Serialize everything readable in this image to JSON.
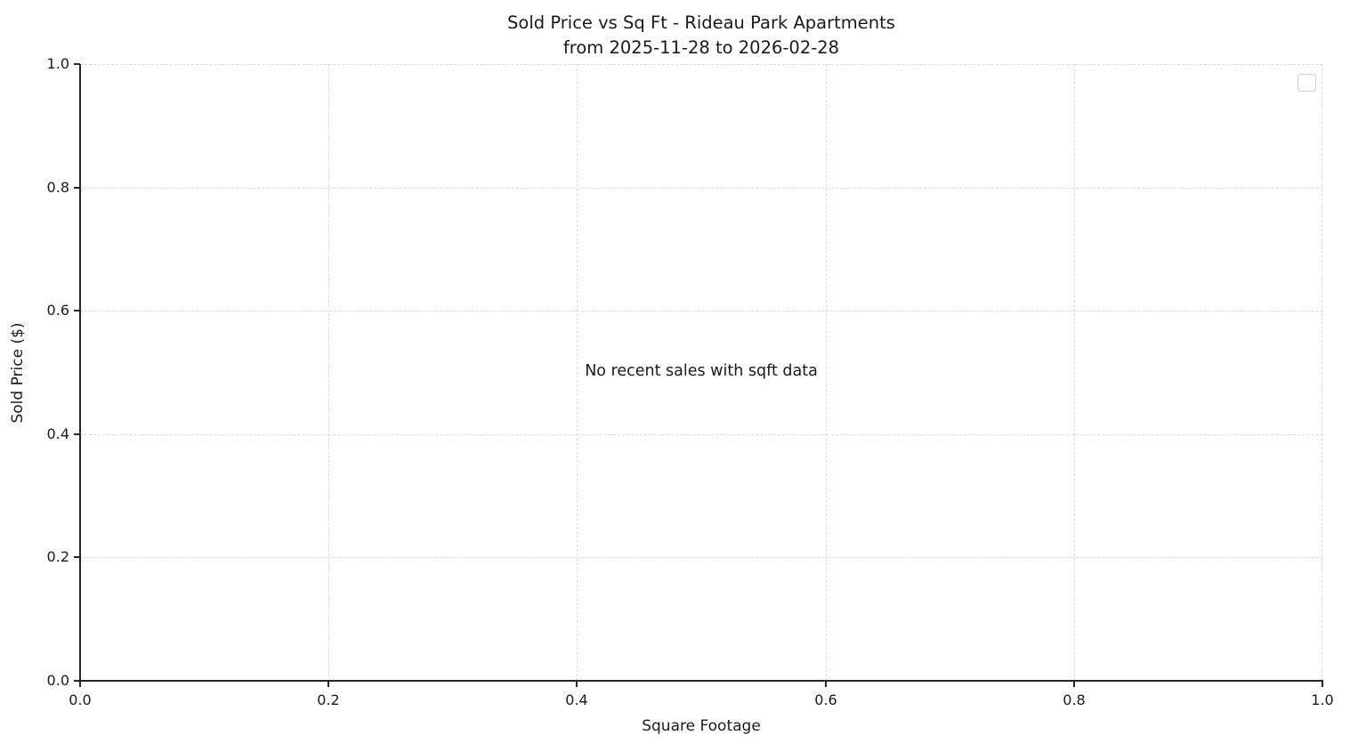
{
  "chart_data": {
    "type": "scatter",
    "title": "Sold Price vs Sq Ft - Rideau Park Apartments",
    "subtitle": "from 2025-11-28 to 2026-02-28",
    "xlabel": "Square Footage",
    "ylabel": "Sold Price ($)",
    "xlim": [
      0.0,
      1.0
    ],
    "ylim": [
      0.0,
      1.0
    ],
    "x_ticks": [
      "0.0",
      "0.2",
      "0.4",
      "0.6",
      "0.8",
      "1.0"
    ],
    "y_ticks": [
      "0.0",
      "0.2",
      "0.4",
      "0.6",
      "0.8",
      "1.0"
    ],
    "series": [],
    "annotation": "No recent sales with sqft data",
    "grid": "on",
    "grid_style": "dashed",
    "legend": "empty",
    "colors": {
      "background": "#ffffff",
      "text": "#1a1a1a",
      "spine": "#262626",
      "gridline": "#d9d9d9",
      "legend_border": "#d0d0d0"
    }
  }
}
